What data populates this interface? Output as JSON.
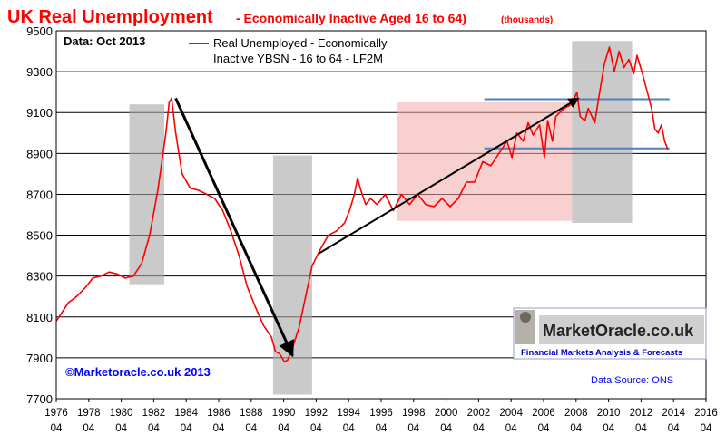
{
  "chart_data": {
    "type": "line",
    "title": "UK  Real Unemployment",
    "subtitle": "- Economically Inactive Aged 16 to 64)",
    "units_note": "(thousands)",
    "data_note": "Data: Oct  2013",
    "legend_label": "Real Unemployed - Economically Inactive YBSN - 16 to 64 - LF2M",
    "legend_line1": "Real Unemployed - Economically",
    "legend_line2": "Inactive YBSN - 16 to 64 - LF2M",
    "copyright": "©Marketoracle.co.uk 2013",
    "source": "Data Source: ONS",
    "logo_text": "MarketOracle.co.uk",
    "logo_tagline": "Financial Markets Analysis & Forecasts",
    "ylim": [
      7700,
      9500
    ],
    "yticks": [
      7700,
      7900,
      8100,
      8300,
      8500,
      8700,
      8900,
      9100,
      9300,
      9500
    ],
    "xlim": [
      1976.25,
      2016.25
    ],
    "xtick_years": [
      "1976",
      "1978",
      "1980",
      "1982",
      "1984",
      "1986",
      "1988",
      "1990",
      "1992",
      "1994",
      "1996",
      "1998",
      "2000",
      "2002",
      "2004",
      "2006",
      "2008",
      "2010",
      "2012",
      "2014",
      "2016"
    ],
    "xtick_sub": "04",
    "grid": "horizontal",
    "colors": {
      "series": "#ff0000",
      "title": "#ff0000",
      "subtitle": "#ff0000",
      "grey_zone": "#a6a6a6",
      "pink_zone": "#f4aaaa",
      "blue_line": "#4f81bd",
      "arrow": "#000000",
      "copyright": "#0000ff",
      "source": "#0000ff"
    },
    "series": [
      {
        "name": "Real Unemployed - Economically Inactive YBSN - 16 to 64 - LF2M",
        "points": [
          [
            1976.25,
            8080
          ],
          [
            1976.5,
            8110
          ],
          [
            1977.0,
            8170
          ],
          [
            1977.5,
            8200
          ],
          [
            1978.0,
            8240
          ],
          [
            1978.5,
            8290
          ],
          [
            1979.0,
            8300
          ],
          [
            1979.5,
            8320
          ],
          [
            1980.0,
            8310
          ],
          [
            1980.5,
            8290
          ],
          [
            1981.0,
            8300
          ],
          [
            1981.5,
            8360
          ],
          [
            1982.0,
            8500
          ],
          [
            1982.5,
            8720
          ],
          [
            1983.0,
            9000
          ],
          [
            1983.2,
            9150
          ],
          [
            1983.35,
            9170
          ],
          [
            1983.6,
            9000
          ],
          [
            1984.0,
            8800
          ],
          [
            1984.5,
            8730
          ],
          [
            1985.0,
            8720
          ],
          [
            1985.5,
            8700
          ],
          [
            1986.0,
            8680
          ],
          [
            1986.5,
            8620
          ],
          [
            1987.0,
            8520
          ],
          [
            1987.5,
            8400
          ],
          [
            1988.0,
            8250
          ],
          [
            1988.5,
            8150
          ],
          [
            1989.0,
            8060
          ],
          [
            1989.5,
            8000
          ],
          [
            1989.75,
            7930
          ],
          [
            1990.0,
            7920
          ],
          [
            1990.3,
            7880
          ],
          [
            1990.5,
            7890
          ],
          [
            1990.8,
            7950
          ],
          [
            1991.2,
            8050
          ],
          [
            1991.6,
            8200
          ],
          [
            1992.0,
            8350
          ],
          [
            1992.5,
            8430
          ],
          [
            1993.0,
            8500
          ],
          [
            1993.5,
            8520
          ],
          [
            1994.0,
            8560
          ],
          [
            1994.3,
            8620
          ],
          [
            1994.6,
            8700
          ],
          [
            1994.8,
            8780
          ],
          [
            1995.0,
            8720
          ],
          [
            1995.3,
            8650
          ],
          [
            1995.6,
            8680
          ],
          [
            1996.0,
            8650
          ],
          [
            1996.5,
            8700
          ],
          [
            1997.0,
            8620
          ],
          [
            1997.5,
            8700
          ],
          [
            1998.0,
            8650
          ],
          [
            1998.5,
            8700
          ],
          [
            1999.0,
            8650
          ],
          [
            1999.5,
            8640
          ],
          [
            2000.0,
            8680
          ],
          [
            2000.5,
            8640
          ],
          [
            2001.0,
            8680
          ],
          [
            2001.5,
            8760
          ],
          [
            2002.0,
            8760
          ],
          [
            2002.5,
            8860
          ],
          [
            2003.0,
            8840
          ],
          [
            2003.5,
            8900
          ],
          [
            2004.0,
            8960
          ],
          [
            2004.3,
            8880
          ],
          [
            2004.6,
            9000
          ],
          [
            2005.0,
            8960
          ],
          [
            2005.3,
            9050
          ],
          [
            2005.6,
            8990
          ],
          [
            2006.0,
            9040
          ],
          [
            2006.3,
            8880
          ],
          [
            2006.5,
            9060
          ],
          [
            2006.8,
            8960
          ],
          [
            2007.0,
            9080
          ],
          [
            2007.5,
            9120
          ],
          [
            2008.0,
            9140
          ],
          [
            2008.3,
            9200
          ],
          [
            2008.5,
            9080
          ],
          [
            2008.8,
            9060
          ],
          [
            2009.0,
            9120
          ],
          [
            2009.4,
            9050
          ],
          [
            2009.7,
            9200
          ],
          [
            2010.0,
            9340
          ],
          [
            2010.3,
            9420
          ],
          [
            2010.6,
            9300
          ],
          [
            2010.9,
            9400
          ],
          [
            2011.2,
            9320
          ],
          [
            2011.5,
            9360
          ],
          [
            2011.8,
            9290
          ],
          [
            2012.0,
            9380
          ],
          [
            2012.3,
            9300
          ],
          [
            2012.6,
            9210
          ],
          [
            2012.9,
            9120
          ],
          [
            2013.1,
            9020
          ],
          [
            2013.3,
            9000
          ],
          [
            2013.5,
            9040
          ],
          [
            2013.7,
            8960
          ],
          [
            2013.9,
            8920
          ]
        ]
      }
    ],
    "shaded_regions": [
      {
        "x": [
          1980.75,
          1982.9
        ],
        "y": [
          8260,
          9140
        ],
        "color": "grey"
      },
      {
        "x": [
          1989.6,
          1992.0
        ],
        "y": [
          7720,
          8890
        ],
        "color": "grey"
      },
      {
        "x": [
          1997.2,
          2008.0
        ],
        "y": [
          8570,
          9150
        ],
        "color": "pink"
      },
      {
        "x": [
          2008.0,
          2011.7
        ],
        "y": [
          8560,
          9450
        ],
        "color": "grey"
      }
    ],
    "reference_lines": [
      {
        "x": [
          2002.6,
          2014.0
        ],
        "y": 9165
      },
      {
        "x": [
          2002.6,
          2014.0
        ],
        "y": 8925
      }
    ],
    "arrows": [
      {
        "from": [
          1983.6,
          9170
        ],
        "to": [
          1990.8,
          7910
        ]
      },
      {
        "from": [
          1992.4,
          8410
        ],
        "to": [
          2008.4,
          9170
        ]
      }
    ]
  }
}
